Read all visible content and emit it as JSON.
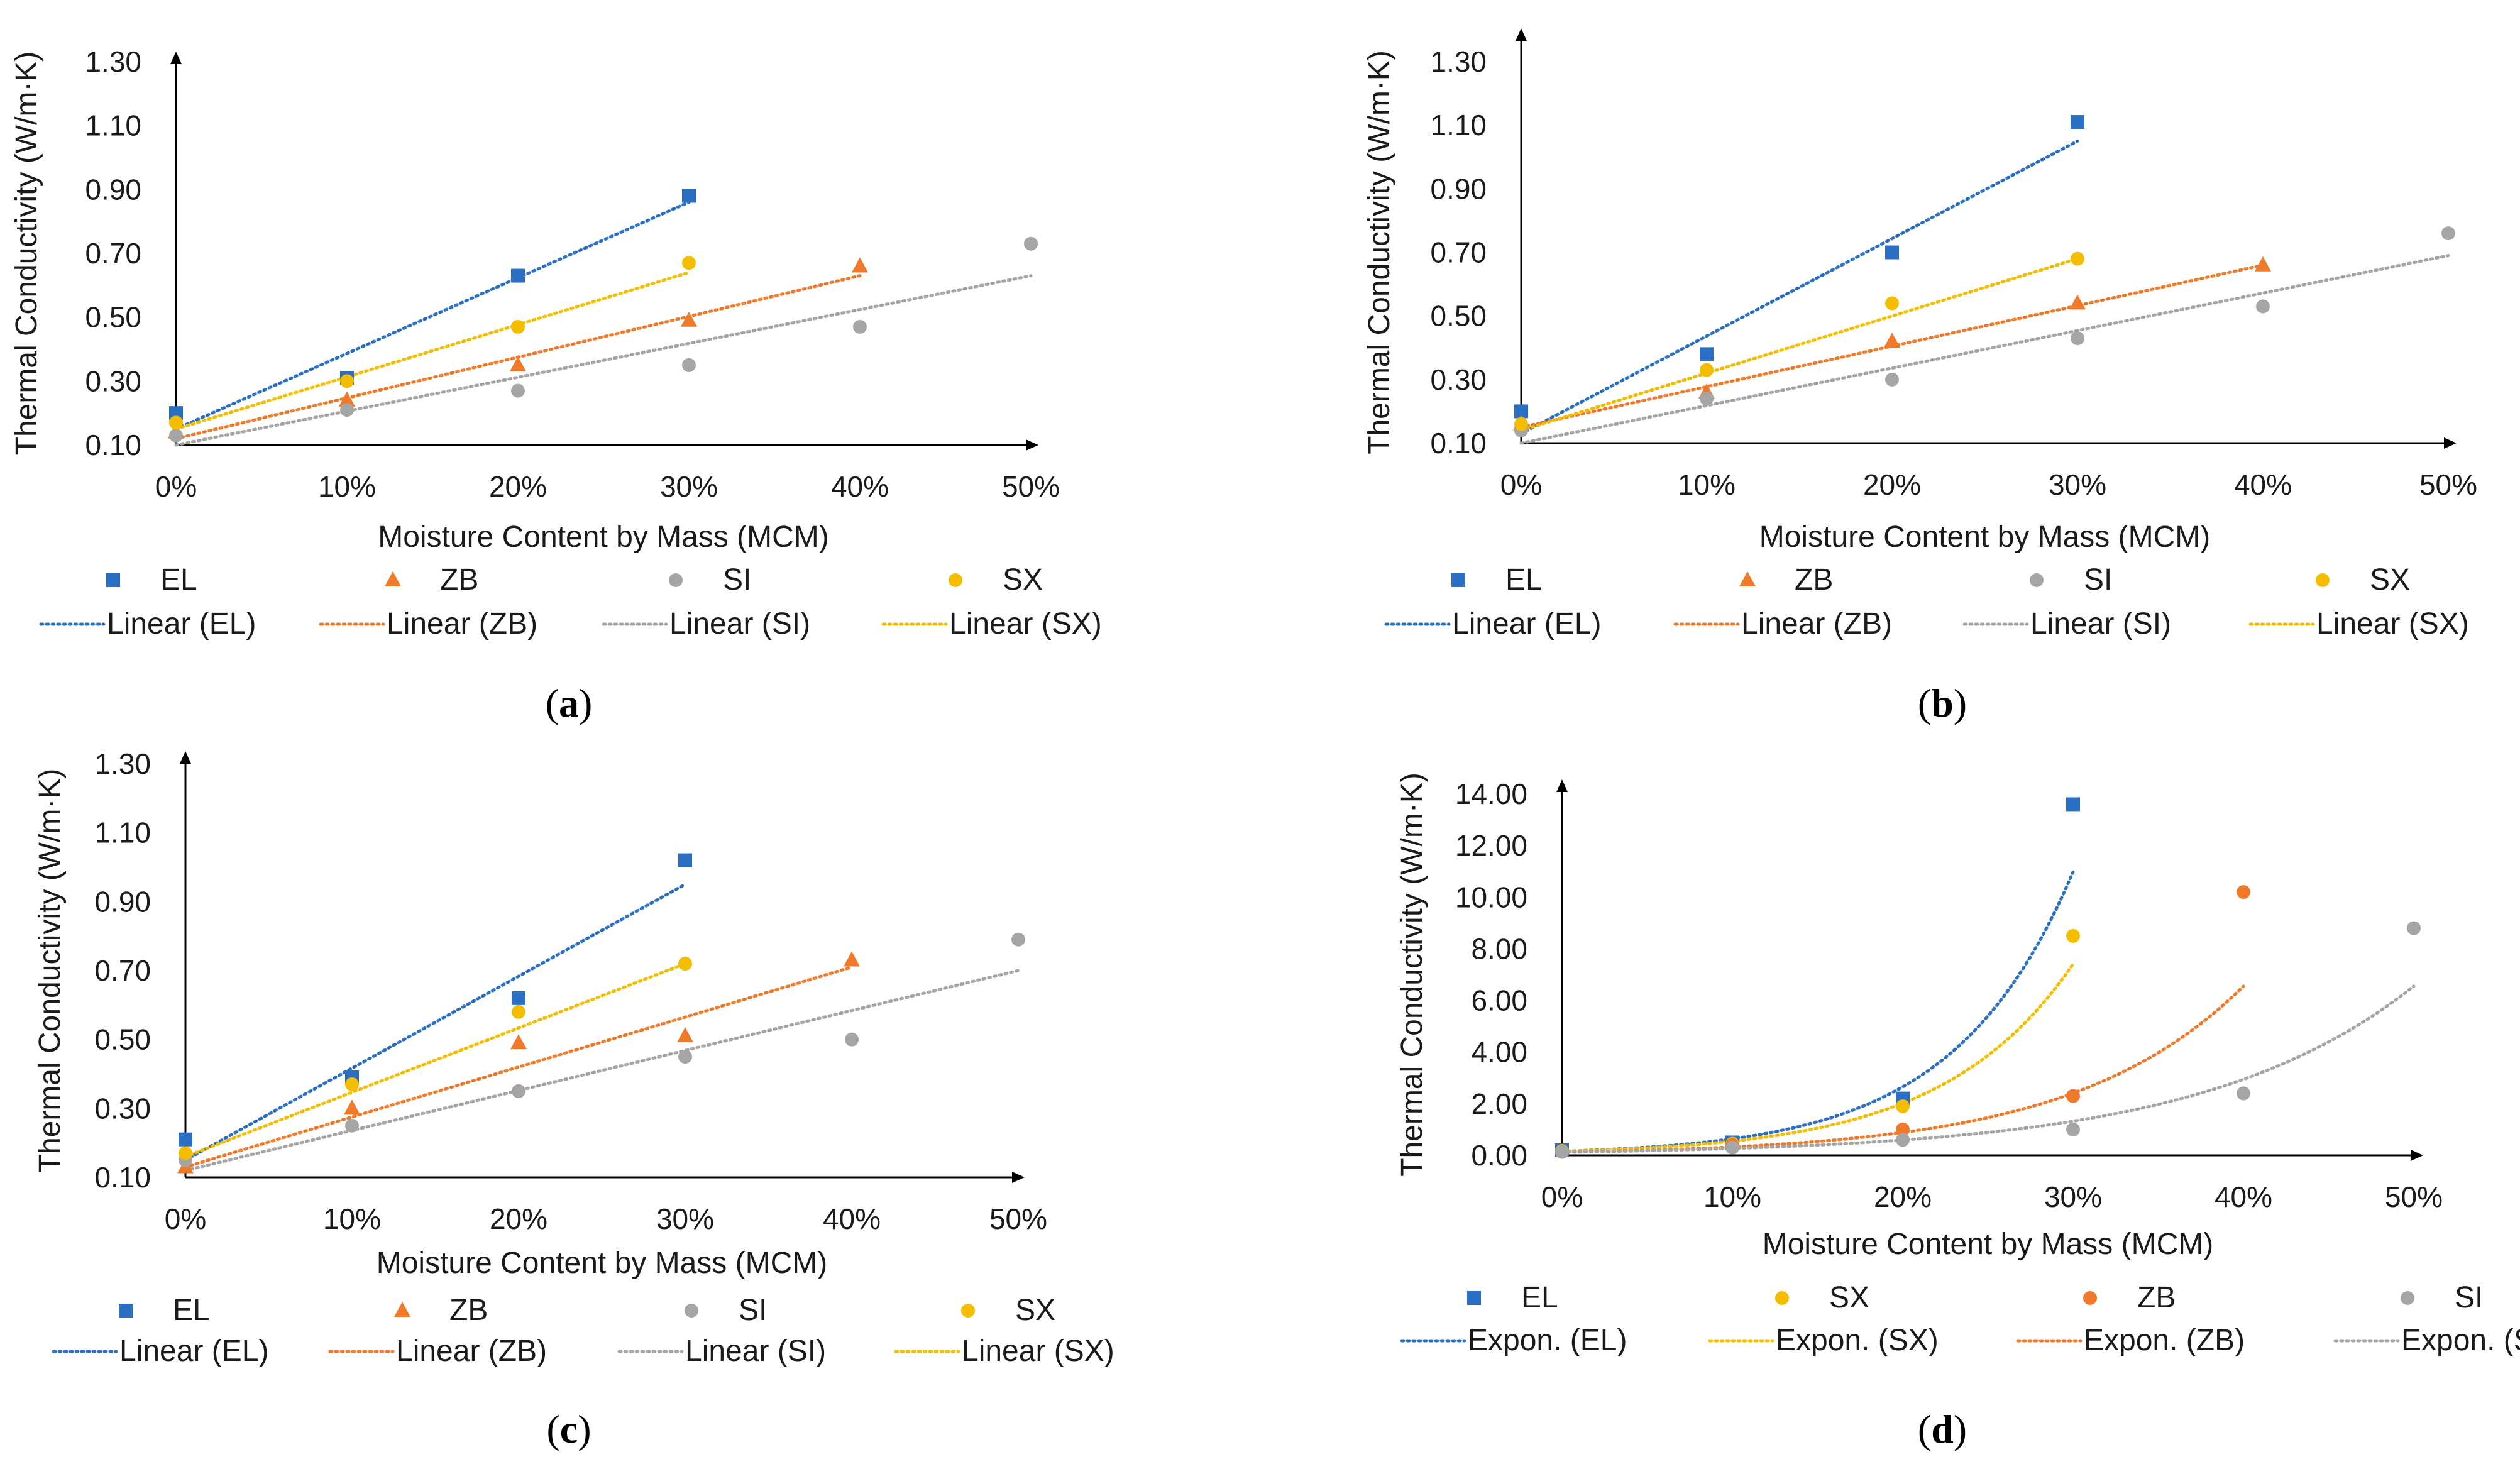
{
  "colors": {
    "EL": "#2a6fc4",
    "ZB": "#f07a2a",
    "SI": "#a5a5a5",
    "SX": "#f5bd00"
  },
  "chart_data": [
    {
      "type": "scatter",
      "panel": "a",
      "ylabel": "Thermal Conductivity (W/m·K)",
      "xlabel": "Moisture Content by Mass (MCM)",
      "ylim": [
        0.1,
        1.3
      ],
      "yticks": [
        "0.10",
        "0.30",
        "0.50",
        "0.70",
        "0.90",
        "1.10",
        "1.30"
      ],
      "ytick_values": [
        0.1,
        0.3,
        0.5,
        0.7,
        0.9,
        1.1,
        1.3
      ],
      "xlim": [
        0,
        50
      ],
      "xticks": [
        "0%",
        "10%",
        "20%",
        "30%",
        "40%",
        "50%"
      ],
      "xtick_values": [
        0,
        10,
        20,
        30,
        40,
        50
      ],
      "series": [
        {
          "name": "EL",
          "marker": "square",
          "x": [
            0,
            10,
            20,
            30
          ],
          "y": [
            0.2,
            0.31,
            0.63,
            0.88
          ],
          "trend": {
            "kind": "linear",
            "x": [
              0,
              30
            ],
            "y": [
              0.15,
              0.86
            ]
          }
        },
        {
          "name": "ZB",
          "marker": "triangle",
          "x": [
            0,
            10,
            20,
            30,
            40
          ],
          "y": [
            0.14,
            0.24,
            0.35,
            0.49,
            0.66
          ],
          "trend": {
            "kind": "linear",
            "x": [
              0,
              40
            ],
            "y": [
              0.12,
              0.63
            ]
          }
        },
        {
          "name": "SI",
          "marker": "circle",
          "x": [
            0,
            10,
            20,
            30,
            40,
            50
          ],
          "y": [
            0.13,
            0.21,
            0.27,
            0.35,
            0.47,
            0.73
          ],
          "trend": {
            "kind": "linear",
            "x": [
              0,
              50
            ],
            "y": [
              0.1,
              0.63
            ]
          }
        },
        {
          "name": "SX",
          "marker": "circle",
          "x": [
            0,
            10,
            20,
            30
          ],
          "y": [
            0.17,
            0.3,
            0.47,
            0.67
          ],
          "trend": {
            "kind": "linear",
            "x": [
              0,
              30
            ],
            "y": [
              0.15,
              0.64
            ]
          }
        }
      ],
      "legend": {
        "markers": [
          "EL",
          "ZB",
          "SI",
          "SX"
        ],
        "lines": [
          "Linear (EL)",
          "Linear (ZB)",
          "Linear (SI)",
          "Linear (SX)"
        ],
        "line_series": [
          "EL",
          "ZB",
          "SI",
          "SX"
        ]
      }
    },
    {
      "type": "scatter",
      "panel": "b",
      "ylabel": "Thermal Conductivity (W/m·K)",
      "xlabel": "Moisture Content by Mass (MCM)",
      "ylim": [
        0.1,
        1.3
      ],
      "yticks": [
        "0.10",
        "0.30",
        "0.50",
        "0.70",
        "0.90",
        "1.10",
        "1.30"
      ],
      "ytick_values": [
        0.1,
        0.3,
        0.5,
        0.7,
        0.9,
        1.1,
        1.3
      ],
      "xlim": [
        0,
        50
      ],
      "xticks": [
        "0%",
        "10%",
        "20%",
        "30%",
        "40%",
        "50%"
      ],
      "xtick_values": [
        0,
        10,
        20,
        30,
        40,
        50
      ],
      "series": [
        {
          "name": "EL",
          "marker": "square",
          "x": [
            0,
            10,
            20,
            30
          ],
          "y": [
            0.2,
            0.38,
            0.7,
            1.11
          ],
          "trend": {
            "kind": "linear",
            "x": [
              0,
              30
            ],
            "y": [
              0.13,
              1.05
            ]
          }
        },
        {
          "name": "ZB",
          "marker": "triangle",
          "x": [
            0,
            10,
            20,
            30,
            40
          ],
          "y": [
            0.16,
            0.26,
            0.42,
            0.54,
            0.66
          ],
          "trend": {
            "kind": "linear",
            "x": [
              0,
              40
            ],
            "y": [
              0.15,
              0.66
            ]
          }
        },
        {
          "name": "SI",
          "marker": "circle",
          "x": [
            0,
            10,
            20,
            30,
            40,
            50
          ],
          "y": [
            0.14,
            0.24,
            0.3,
            0.43,
            0.53,
            0.76
          ],
          "trend": {
            "kind": "linear",
            "x": [
              0,
              50
            ],
            "y": [
              0.1,
              0.69
            ]
          }
        },
        {
          "name": "SX",
          "marker": "circle",
          "x": [
            0,
            10,
            20,
            30
          ],
          "y": [
            0.16,
            0.33,
            0.54,
            0.68
          ],
          "trend": {
            "kind": "linear",
            "x": [
              0,
              30
            ],
            "y": [
              0.14,
              0.68
            ]
          }
        }
      ],
      "legend": {
        "markers": [
          "EL",
          "ZB",
          "SI",
          "SX"
        ],
        "lines": [
          "Linear (EL)",
          "Linear (ZB)",
          "Linear (SI)",
          "Linear (SX)"
        ],
        "line_series": [
          "EL",
          "ZB",
          "SI",
          "SX"
        ]
      }
    },
    {
      "type": "scatter",
      "panel": "c",
      "ylabel": "Thermal Conductivity (W/m·K)",
      "xlabel": "Moisture Content by Mass (MCM)",
      "ylim": [
        0.1,
        1.3
      ],
      "yticks": [
        "0.10",
        "0.30",
        "0.50",
        "0.70",
        "0.90",
        "1.10",
        "1.30"
      ],
      "ytick_values": [
        0.1,
        0.3,
        0.5,
        0.7,
        0.9,
        1.1,
        1.3
      ],
      "xlim": [
        0,
        50
      ],
      "xticks": [
        "0%",
        "10%",
        "20%",
        "30%",
        "40%",
        "50%"
      ],
      "xtick_values": [
        0,
        10,
        20,
        30,
        40,
        50
      ],
      "series": [
        {
          "name": "EL",
          "marker": "square",
          "x": [
            0,
            10,
            20,
            30
          ],
          "y": [
            0.21,
            0.39,
            0.62,
            1.02
          ],
          "trend": {
            "kind": "linear",
            "x": [
              0,
              30
            ],
            "y": [
              0.15,
              0.95
            ]
          }
        },
        {
          "name": "ZB",
          "marker": "triangle",
          "x": [
            0,
            10,
            20,
            30,
            40
          ],
          "y": [
            0.13,
            0.3,
            0.49,
            0.51,
            0.73
          ],
          "trend": {
            "kind": "linear",
            "x": [
              0,
              40
            ],
            "y": [
              0.13,
              0.71
            ]
          }
        },
        {
          "name": "SI",
          "marker": "circle",
          "x": [
            0,
            10,
            20,
            30,
            40,
            50
          ],
          "y": [
            0.15,
            0.25,
            0.35,
            0.45,
            0.5,
            0.79
          ],
          "trend": {
            "kind": "linear",
            "x": [
              0,
              50
            ],
            "y": [
              0.12,
              0.7
            ]
          }
        },
        {
          "name": "SX",
          "marker": "circle",
          "x": [
            0,
            10,
            20,
            30
          ],
          "y": [
            0.17,
            0.37,
            0.58,
            0.72
          ],
          "trend": {
            "kind": "linear",
            "x": [
              0,
              30
            ],
            "y": [
              0.16,
              0.72
            ]
          }
        }
      ],
      "legend": {
        "markers": [
          "EL",
          "ZB",
          "SI",
          "SX"
        ],
        "lines": [
          "Linear (EL)",
          "Linear (ZB)",
          "Linear (SI)",
          "Linear (SX)"
        ],
        "line_series": [
          "EL",
          "ZB",
          "SI",
          "SX"
        ]
      }
    },
    {
      "type": "scatter",
      "panel": "d",
      "ylabel": "Thermal Conductivity (W/m·K)",
      "xlabel": "Moisture Content by Mass (MCM)",
      "ylim": [
        0,
        14
      ],
      "yticks": [
        "0.00",
        "2.00",
        "4.00",
        "6.00",
        "8.00",
        "10.00",
        "12.00",
        "14.00"
      ],
      "ytick_values": [
        0,
        2,
        4,
        6,
        8,
        10,
        12,
        14
      ],
      "xlim": [
        0,
        50
      ],
      "xticks": [
        "0%",
        "10%",
        "20%",
        "30%",
        "40%",
        "50%"
      ],
      "xtick_values": [
        0,
        10,
        20,
        30,
        40,
        50
      ],
      "series": [
        {
          "name": "EL",
          "marker": "square",
          "x": [
            0,
            10,
            20,
            30
          ],
          "y": [
            0.2,
            0.5,
            2.2,
            13.6
          ],
          "trend": {
            "kind": "exp",
            "x": [
              0,
              30
            ],
            "a": 0.155,
            "b": 0.142
          }
        },
        {
          "name": "SX",
          "marker": "circle",
          "x": [
            0,
            10,
            20,
            30
          ],
          "y": [
            0.17,
            0.45,
            1.9,
            8.5
          ],
          "trend": {
            "kind": "exp",
            "x": [
              0,
              30
            ],
            "a": 0.15,
            "b": 0.13
          }
        },
        {
          "name": "ZB",
          "marker": "circle",
          "x": [
            0,
            10,
            20,
            30,
            40
          ],
          "y": [
            0.14,
            0.4,
            1.0,
            2.3,
            10.2
          ],
          "trend": {
            "kind": "exp",
            "x": [
              0,
              40
            ],
            "a": 0.12,
            "b": 0.1
          }
        },
        {
          "name": "SI",
          "marker": "circle",
          "x": [
            0,
            10,
            20,
            30,
            40,
            50
          ],
          "y": [
            0.13,
            0.3,
            0.6,
            1.0,
            2.4,
            8.8
          ],
          "trend": {
            "kind": "exp",
            "x": [
              0,
              50
            ],
            "a": 0.12,
            "b": 0.08
          }
        }
      ],
      "legend": {
        "markers": [
          "EL",
          "SX",
          "ZB",
          "SI"
        ],
        "lines": [
          "Expon. (EL)",
          "Expon. (SX)",
          "Expon. (ZB)",
          "Expon. (SI)"
        ],
        "line_series": [
          "EL",
          "SX",
          "ZB",
          "SI"
        ]
      }
    }
  ]
}
